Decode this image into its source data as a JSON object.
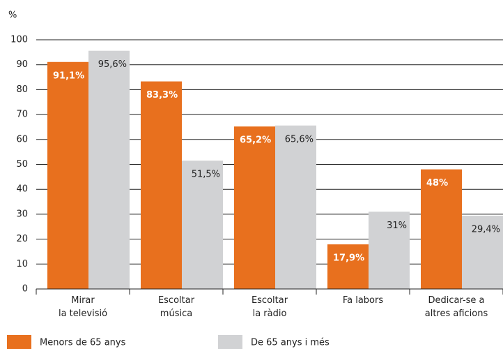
{
  "chart_data": {
    "type": "bar",
    "y_label": "%",
    "categories": [
      "Mirar\nla televisió",
      "Escoltar\nmúsica",
      "Escoltar\nla ràdio",
      "Fa labors",
      "Dedicar-se a\naltres aficions"
    ],
    "series": [
      {
        "name": "Menors de 65 anys",
        "color": "#e8701e",
        "values": [
          91.1,
          83.3,
          65.2,
          17.9,
          48
        ],
        "value_labels": [
          "91,1%",
          "83,3%",
          "65,2%",
          "17,9%",
          "48%"
        ]
      },
      {
        "name": "De 65 anys i més",
        "color": "#d1d2d4",
        "values": [
          95.6,
          51.5,
          65.6,
          31,
          29.4
        ],
        "value_labels": [
          "95,6%",
          "51,5%",
          "65,6%",
          "31%",
          "29,4%"
        ]
      }
    ],
    "ylim": [
      0,
      100
    ],
    "yticks": [
      0,
      10,
      20,
      30,
      40,
      50,
      60,
      70,
      80,
      90,
      100
    ],
    "grid": true
  }
}
